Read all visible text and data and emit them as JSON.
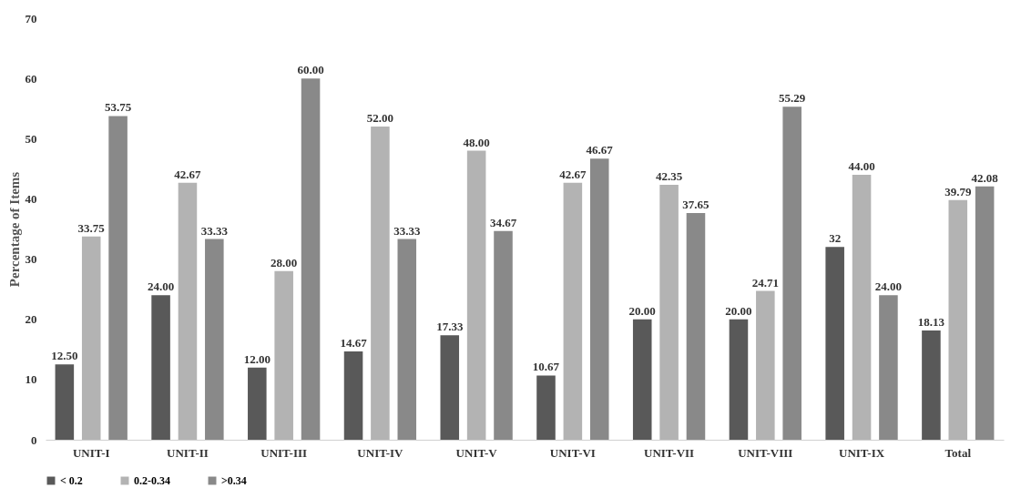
{
  "chart_data": {
    "type": "bar",
    "ylabel": "Percentage of Items",
    "categories": [
      "UNIT-I",
      "UNIT-II",
      "UNIT-III",
      "UNIT-IV",
      "UNIT-V",
      "UNIT-VI",
      "UNIT-VII",
      "UNIT-VIII",
      "UNIT-IX",
      "Total"
    ],
    "series": [
      {
        "name": "< 0.2",
        "color": "#595959",
        "values": [
          12.5,
          24,
          12,
          14.67,
          17.33,
          10.67,
          20,
          20,
          32,
          18.13
        ],
        "value_labels": [
          "12.50",
          "24.00",
          "12.00",
          "14.67",
          "17.33",
          "10.67",
          "20.00",
          "20.00",
          "32",
          "18.13"
        ]
      },
      {
        "name": "0.2-0.34",
        "color": "#b3b3b3",
        "values": [
          33.75,
          42.67,
          28,
          52,
          48,
          42.67,
          42.35,
          24.71,
          44,
          39.79
        ],
        "value_labels": [
          "33.75",
          "42.67",
          "28.00",
          "52.00",
          "48.00",
          "42.67",
          "42.35",
          "24.71",
          "44.00",
          "39.79"
        ]
      },
      {
        "name": ">0.34",
        "color": "#898989",
        "values": [
          53.75,
          33.33,
          60,
          33.33,
          34.67,
          46.67,
          37.65,
          55.29,
          24,
          42.08
        ],
        "value_labels": [
          "53.75",
          "33.33",
          "60.00",
          "33.33",
          "34.67",
          "46.67",
          "37.65",
          "55.29",
          "24.00",
          "42.08"
        ]
      }
    ],
    "ylim": [
      0,
      70
    ],
    "yticks": [
      0,
      10,
      20,
      30,
      40,
      50,
      60,
      70
    ],
    "grid": false,
    "legend": "bottom"
  }
}
